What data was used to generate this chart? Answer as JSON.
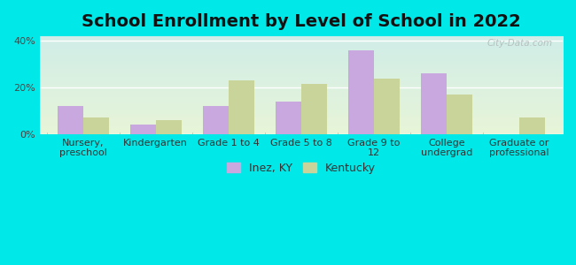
{
  "title": "School Enrollment by Level of School in 2022",
  "categories": [
    "Nursery,\npreschool",
    "Kindergarten",
    "Grade 1 to 4",
    "Grade 5 to 8",
    "Grade 9 to\n12",
    "College\nundergrad",
    "Graduate or\nprofessional"
  ],
  "inez_values": [
    12.0,
    4.0,
    12.0,
    14.0,
    36.0,
    26.0,
    0.0
  ],
  "kentucky_values": [
    7.0,
    6.0,
    23.0,
    21.5,
    24.0,
    17.0,
    7.0
  ],
  "inez_color": "#c9a8e0",
  "kentucky_color": "#c8d49a",
  "background_outer": "#00e8e8",
  "bg_top_color": "#d0ede8",
  "bg_bottom_color": "#e8f5d8",
  "ylabel_ticks": [
    "0%",
    "20%",
    "40%"
  ],
  "yticks": [
    0,
    20,
    40
  ],
  "ylim": [
    0,
    42
  ],
  "legend_labels": [
    "Inez, KY",
    "Kentucky"
  ],
  "watermark": "City-Data.com",
  "title_fontsize": 14,
  "tick_fontsize": 8,
  "legend_fontsize": 9,
  "bar_width": 0.35
}
